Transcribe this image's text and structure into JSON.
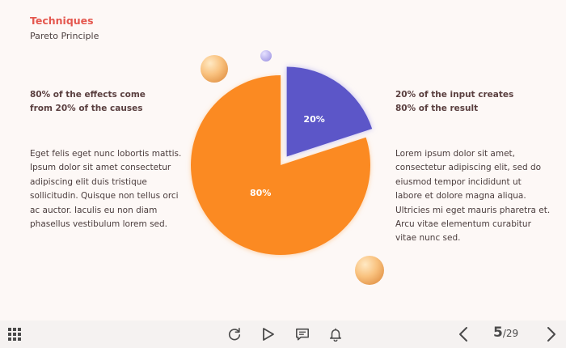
{
  "slide": {
    "title": "Techniques",
    "subtitle": "Pareto Principle",
    "left": {
      "heading_line1": "80% of the effects come",
      "heading_line2": "from 20% of the causes",
      "body_lines": [
        "Eget felis eget nunc lobortis mattis.",
        "Ipsum dolor sit amet consectetur",
        "adipiscing elit duis tristique",
        "sollicitudin. Quisque non tellus orci",
        "ac auctor. Iaculis eu non diam",
        "phasellus vestibulum lorem sed."
      ]
    },
    "right": {
      "heading_line1": "20% of the input creates",
      "heading_line2": "80% of the result",
      "body_lines": [
        "Lorem ipsum dolor sit amet,",
        "consectetur adipiscing elit, sed do",
        "eiusmod tempor incididunt ut",
        "labore et dolore magna aliqua.",
        "Ultricies mi eget mauris pharetra et.",
        "Arcu vitae elementum curabitur",
        "vitae nunc sed."
      ]
    }
  },
  "chart_data": {
    "type": "pie",
    "title": "",
    "slices": [
      {
        "label": "20%",
        "value": 20,
        "color": "#5b57c8",
        "exploded": true
      },
      {
        "label": "80%",
        "value": 80,
        "color": "#fb8a23",
        "exploded": false
      }
    ]
  },
  "colors": {
    "accent": "#e4574e",
    "background": "#fdf8f6",
    "toolbar": "#f5f2f1",
    "icon": "#4a4a4a"
  },
  "toolbar": {
    "menu_icon": "grid-menu-icon",
    "replay_icon": "replay-icon",
    "play_icon": "play-icon",
    "comment_icon": "comment-icon",
    "notification_icon": "bell-icon",
    "prev_icon": "chevron-left-icon",
    "next_icon": "chevron-right-icon",
    "page_current": "5",
    "page_separator": "/",
    "page_total": "29"
  }
}
